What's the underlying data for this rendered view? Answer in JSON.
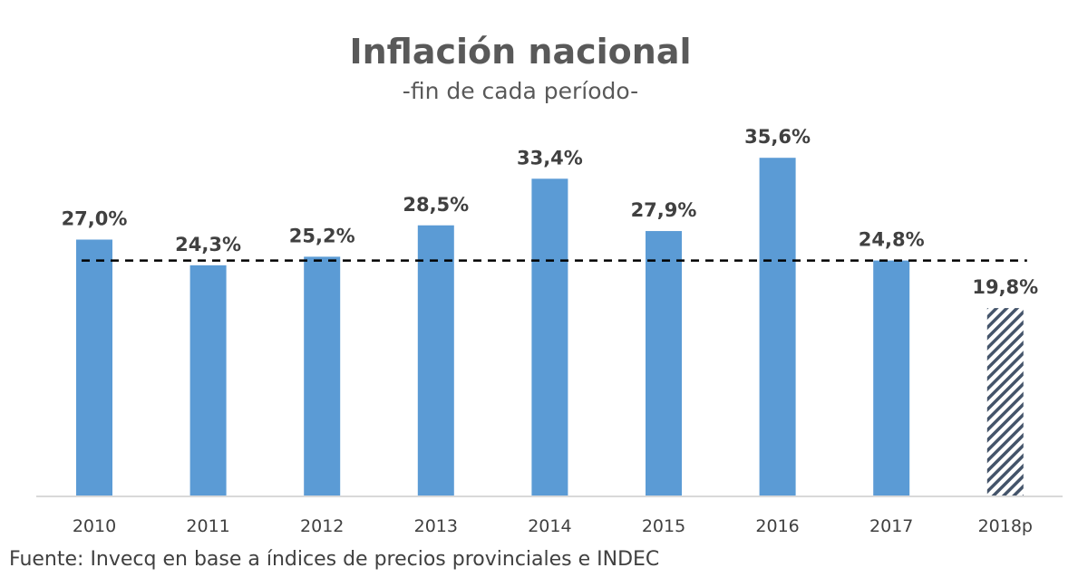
{
  "chart_data": {
    "type": "bar",
    "title": "Inflación nacional",
    "subtitle": "-fin de cada período-",
    "categories": [
      "2010",
      "2011",
      "2012",
      "2013",
      "2014",
      "2015",
      "2016",
      "2017",
      "2018p"
    ],
    "values": [
      27.0,
      24.3,
      25.2,
      28.5,
      33.4,
      27.9,
      35.6,
      24.8,
      19.8
    ],
    "data_labels": [
      "27,0%",
      "24,3%",
      "25,2%",
      "28,5%",
      "33,4%",
      "27,9%",
      "35,6%",
      "24,8%",
      "19,8%"
    ],
    "projected": [
      false,
      false,
      false,
      false,
      false,
      false,
      false,
      false,
      true
    ],
    "reference_line": {
      "value": 24.8,
      "style": "dashed",
      "color": "#000000"
    },
    "ylim": [
      0,
      36
    ],
    "xlabel": "",
    "ylabel": "",
    "grid": false,
    "legend": "none",
    "colors": {
      "bar": "#5B9BD5",
      "projected_hatch": "#44546A",
      "axis": "#D9D9D9",
      "text": "#404040",
      "title": "#595959"
    }
  },
  "source": "Fuente: Invecq en base a  índices de precios provinciales e INDEC"
}
